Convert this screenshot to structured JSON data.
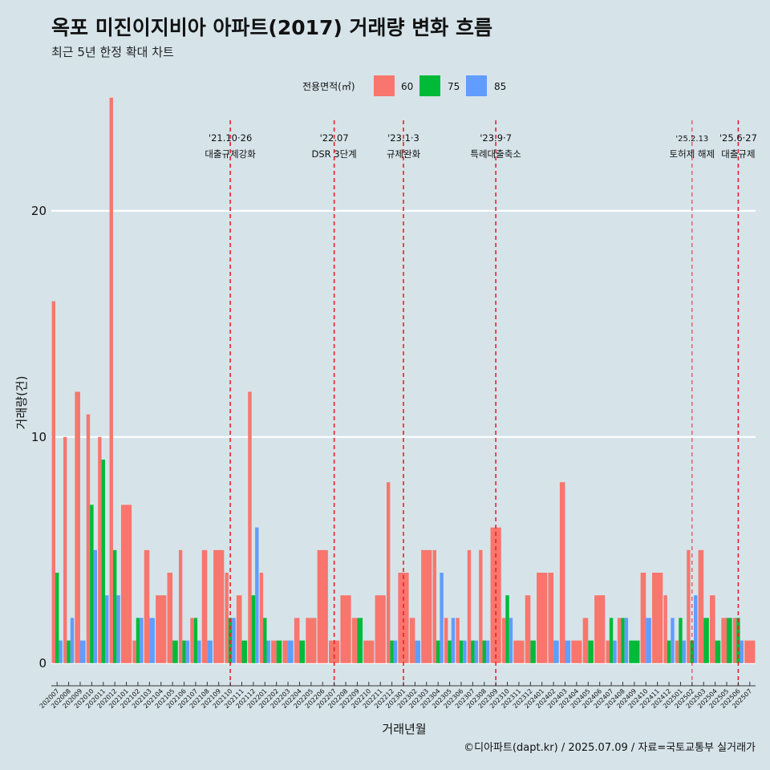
{
  "title": "옥포 미진이지비아 아파트(2017) 거래량 변화 흐름",
  "subtitle": "최근 5년 한정 확대 차트",
  "caption": "©디아파트(dapt.kr) / 2025.07.09 / 자료=국토교통부 실거래가",
  "legend": {
    "title": "전용면적(㎡)",
    "items": [
      {
        "label": "60",
        "color": "#f8766d"
      },
      {
        "label": "75",
        "color": "#00ba38"
      },
      {
        "label": "85",
        "color": "#619cff"
      }
    ]
  },
  "chart_data": {
    "type": "bar",
    "xlabel": "거래년월",
    "ylabel": "거래량(건)",
    "ylim": [
      -1,
      24
    ],
    "yticks": [
      0,
      10,
      20
    ],
    "grid": "horizontal",
    "legend_position": "top",
    "categories": [
      "202007",
      "202008",
      "202009",
      "202010",
      "202011",
      "202012",
      "202101",
      "202102",
      "202103",
      "202104",
      "202105",
      "202106",
      "202107",
      "202108",
      "202109",
      "202110",
      "202111",
      "202112",
      "202201",
      "202202",
      "202203",
      "202204",
      "202205",
      "202206",
      "202207",
      "202208",
      "202209",
      "202210",
      "202211",
      "202212",
      "202301",
      "202302",
      "202303",
      "202304",
      "202305",
      "202306",
      "202307",
      "202308",
      "202309",
      "202310",
      "202311",
      "202312",
      "202401",
      "202402",
      "202403",
      "202404",
      "202405",
      "202406",
      "202407",
      "202408",
      "202409",
      "202410",
      "202411",
      "202412",
      "202501",
      "202502",
      "202503",
      "202504",
      "202505",
      "202506",
      "202507"
    ],
    "bars": [
      {
        "x": "202007",
        "series": "60",
        "value": 16
      },
      {
        "x": "202007",
        "series": "75",
        "value": 4
      },
      {
        "x": "202007",
        "series": "85",
        "value": 1
      },
      {
        "x": "202008",
        "series": "60",
        "value": 10
      },
      {
        "x": "202008",
        "series": "75",
        "value": 1
      },
      {
        "x": "202008",
        "series": "85",
        "value": 2
      },
      {
        "x": "202009",
        "series": "60",
        "value": 12
      },
      {
        "x": "202009",
        "series": "85",
        "value": 1
      },
      {
        "x": "202010",
        "series": "60",
        "value": 11
      },
      {
        "x": "202010",
        "series": "75",
        "value": 7
      },
      {
        "x": "202010",
        "series": "85",
        "value": 5
      },
      {
        "x": "202011",
        "series": "60",
        "value": 10
      },
      {
        "x": "202011",
        "series": "75",
        "value": 9
      },
      {
        "x": "202011",
        "series": "85",
        "value": 3
      },
      {
        "x": "202012",
        "series": "60",
        "value": 25
      },
      {
        "x": "202012",
        "series": "75",
        "value": 5
      },
      {
        "x": "202012",
        "series": "85",
        "value": 3
      },
      {
        "x": "202101",
        "series": "60",
        "value": 7
      },
      {
        "x": "202102",
        "series": "60",
        "value": 1
      },
      {
        "x": "202102",
        "series": "75",
        "value": 2
      },
      {
        "x": "202102",
        "series": "85",
        "value": 2
      },
      {
        "x": "202103",
        "series": "60",
        "value": 5
      },
      {
        "x": "202103",
        "series": "85",
        "value": 2
      },
      {
        "x": "202104",
        "series": "60",
        "value": 3
      },
      {
        "x": "202105",
        "series": "60",
        "value": 4
      },
      {
        "x": "202105",
        "series": "75",
        "value": 1
      },
      {
        "x": "202106",
        "series": "60",
        "value": 5
      },
      {
        "x": "202106",
        "series": "75",
        "value": 1
      },
      {
        "x": "202106",
        "series": "85",
        "value": 1
      },
      {
        "x": "202107",
        "series": "60",
        "value": 2
      },
      {
        "x": "202107",
        "series": "75",
        "value": 2
      },
      {
        "x": "202107",
        "series": "85",
        "value": 1
      },
      {
        "x": "202108",
        "series": "60",
        "value": 5
      },
      {
        "x": "202108",
        "series": "85",
        "value": 1
      },
      {
        "x": "202109",
        "series": "60",
        "value": 5
      },
      {
        "x": "202110",
        "series": "60",
        "value": 4
      },
      {
        "x": "202110",
        "series": "75",
        "value": 2
      },
      {
        "x": "202110",
        "series": "85",
        "value": 2
      },
      {
        "x": "202111",
        "series": "60",
        "value": 3
      },
      {
        "x": "202111",
        "series": "75",
        "value": 1
      },
      {
        "x": "202112",
        "series": "60",
        "value": 12
      },
      {
        "x": "202112",
        "series": "75",
        "value": 3
      },
      {
        "x": "202112",
        "series": "85",
        "value": 6
      },
      {
        "x": "202201",
        "series": "60",
        "value": 4
      },
      {
        "x": "202201",
        "series": "75",
        "value": 2
      },
      {
        "x": "202201",
        "series": "85",
        "value": 1
      },
      {
        "x": "202202",
        "series": "60",
        "value": 1
      },
      {
        "x": "202202",
        "series": "75",
        "value": 1
      },
      {
        "x": "202203",
        "series": "60",
        "value": 1
      },
      {
        "x": "202203",
        "series": "85",
        "value": 1
      },
      {
        "x": "202204",
        "series": "60",
        "value": 2
      },
      {
        "x": "202204",
        "series": "75",
        "value": 1
      },
      {
        "x": "202205",
        "series": "60",
        "value": 2
      },
      {
        "x": "202206",
        "series": "60",
        "value": 5
      },
      {
        "x": "202207",
        "series": "60",
        "value": 1
      },
      {
        "x": "202208",
        "series": "60",
        "value": 3
      },
      {
        "x": "202209",
        "series": "60",
        "value": 2
      },
      {
        "x": "202209",
        "series": "75",
        "value": 2
      },
      {
        "x": "202210",
        "series": "60",
        "value": 1
      },
      {
        "x": "202211",
        "series": "60",
        "value": 3
      },
      {
        "x": "202212",
        "series": "60",
        "value": 8
      },
      {
        "x": "202212",
        "series": "75",
        "value": 1
      },
      {
        "x": "202212",
        "series": "85",
        "value": 1
      },
      {
        "x": "202301",
        "series": "60",
        "value": 4
      },
      {
        "x": "202302",
        "series": "60",
        "value": 2
      },
      {
        "x": "202302",
        "series": "85",
        "value": 1
      },
      {
        "x": "202303",
        "series": "60",
        "value": 5
      },
      {
        "x": "202304",
        "series": "60",
        "value": 5
      },
      {
        "x": "202304",
        "series": "75",
        "value": 1
      },
      {
        "x": "202304",
        "series": "85",
        "value": 4
      },
      {
        "x": "202305",
        "series": "60",
        "value": 2
      },
      {
        "x": "202305",
        "series": "75",
        "value": 1
      },
      {
        "x": "202305",
        "series": "85",
        "value": 2
      },
      {
        "x": "202306",
        "series": "60",
        "value": 2
      },
      {
        "x": "202306",
        "series": "75",
        "value": 1
      },
      {
        "x": "202306",
        "series": "85",
        "value": 1
      },
      {
        "x": "202307",
        "series": "60",
        "value": 5
      },
      {
        "x": "202307",
        "series": "75",
        "value": 1
      },
      {
        "x": "202307",
        "series": "85",
        "value": 1
      },
      {
        "x": "202308",
        "series": "60",
        "value": 5
      },
      {
        "x": "202308",
        "series": "75",
        "value": 1
      },
      {
        "x": "202308",
        "series": "85",
        "value": 1
      },
      {
        "x": "202309",
        "series": "60",
        "value": 6
      },
      {
        "x": "202310",
        "series": "60",
        "value": 2
      },
      {
        "x": "202310",
        "series": "75",
        "value": 3
      },
      {
        "x": "202310",
        "series": "85",
        "value": 2
      },
      {
        "x": "202311",
        "series": "60",
        "value": 1
      },
      {
        "x": "202312",
        "series": "60",
        "value": 3
      },
      {
        "x": "202312",
        "series": "75",
        "value": 1
      },
      {
        "x": "202401",
        "series": "60",
        "value": 4
      },
      {
        "x": "202402",
        "series": "60",
        "value": 4
      },
      {
        "x": "202402",
        "series": "85",
        "value": 1
      },
      {
        "x": "202403",
        "series": "60",
        "value": 8
      },
      {
        "x": "202403",
        "series": "85",
        "value": 1
      },
      {
        "x": "202404",
        "series": "60",
        "value": 1
      },
      {
        "x": "202405",
        "series": "60",
        "value": 2
      },
      {
        "x": "202405",
        "series": "75",
        "value": 1
      },
      {
        "x": "202406",
        "series": "60",
        "value": 3
      },
      {
        "x": "202407",
        "series": "60",
        "value": 1
      },
      {
        "x": "202407",
        "series": "75",
        "value": 2
      },
      {
        "x": "202407",
        "series": "85",
        "value": 1
      },
      {
        "x": "202408",
        "series": "60",
        "value": 2
      },
      {
        "x": "202408",
        "series": "75",
        "value": 2
      },
      {
        "x": "202408",
        "series": "85",
        "value": 2
      },
      {
        "x": "202409",
        "series": "75",
        "value": 1
      },
      {
        "x": "202410",
        "series": "60",
        "value": 4
      },
      {
        "x": "202410",
        "series": "85",
        "value": 2
      },
      {
        "x": "202411",
        "series": "60",
        "value": 4
      },
      {
        "x": "202412",
        "series": "60",
        "value": 3
      },
      {
        "x": "202412",
        "series": "75",
        "value": 1
      },
      {
        "x": "202412",
        "series": "85",
        "value": 2
      },
      {
        "x": "202501",
        "series": "60",
        "value": 1
      },
      {
        "x": "202501",
        "series": "75",
        "value": 2
      },
      {
        "x": "202501",
        "series": "85",
        "value": 1
      },
      {
        "x": "202502",
        "series": "60",
        "value": 5
      },
      {
        "x": "202502",
        "series": "75",
        "value": 1
      },
      {
        "x": "202502",
        "series": "85",
        "value": 3
      },
      {
        "x": "202503",
        "series": "60",
        "value": 5
      },
      {
        "x": "202503",
        "series": "75",
        "value": 2
      },
      {
        "x": "202504",
        "series": "60",
        "value": 3
      },
      {
        "x": "202504",
        "series": "75",
        "value": 1
      },
      {
        "x": "202505",
        "series": "60",
        "value": 2
      },
      {
        "x": "202505",
        "series": "75",
        "value": 2
      },
      {
        "x": "202506",
        "series": "60",
        "value": 2
      },
      {
        "x": "202506",
        "series": "75",
        "value": 2
      },
      {
        "x": "202506",
        "series": "85",
        "value": 1
      },
      {
        "x": "202507",
        "series": "60",
        "value": 1
      }
    ],
    "events": [
      {
        "x": "202110",
        "date": "'21.10·26",
        "label": "대출규제강화"
      },
      {
        "x": "202207",
        "date": "'22.07",
        "label": "DSR 3단계"
      },
      {
        "x": "202301",
        "date": "'23.1·3",
        "label": "규제완화"
      },
      {
        "x": "202309",
        "date": "'23.9·7",
        "label": "특례대출축소"
      },
      {
        "x": "202502",
        "date": "'25.2.13",
        "label": "토허제 해제",
        "small": true
      },
      {
        "x": "202506",
        "date": "'25.6·27",
        "label": "대출규제"
      }
    ]
  }
}
